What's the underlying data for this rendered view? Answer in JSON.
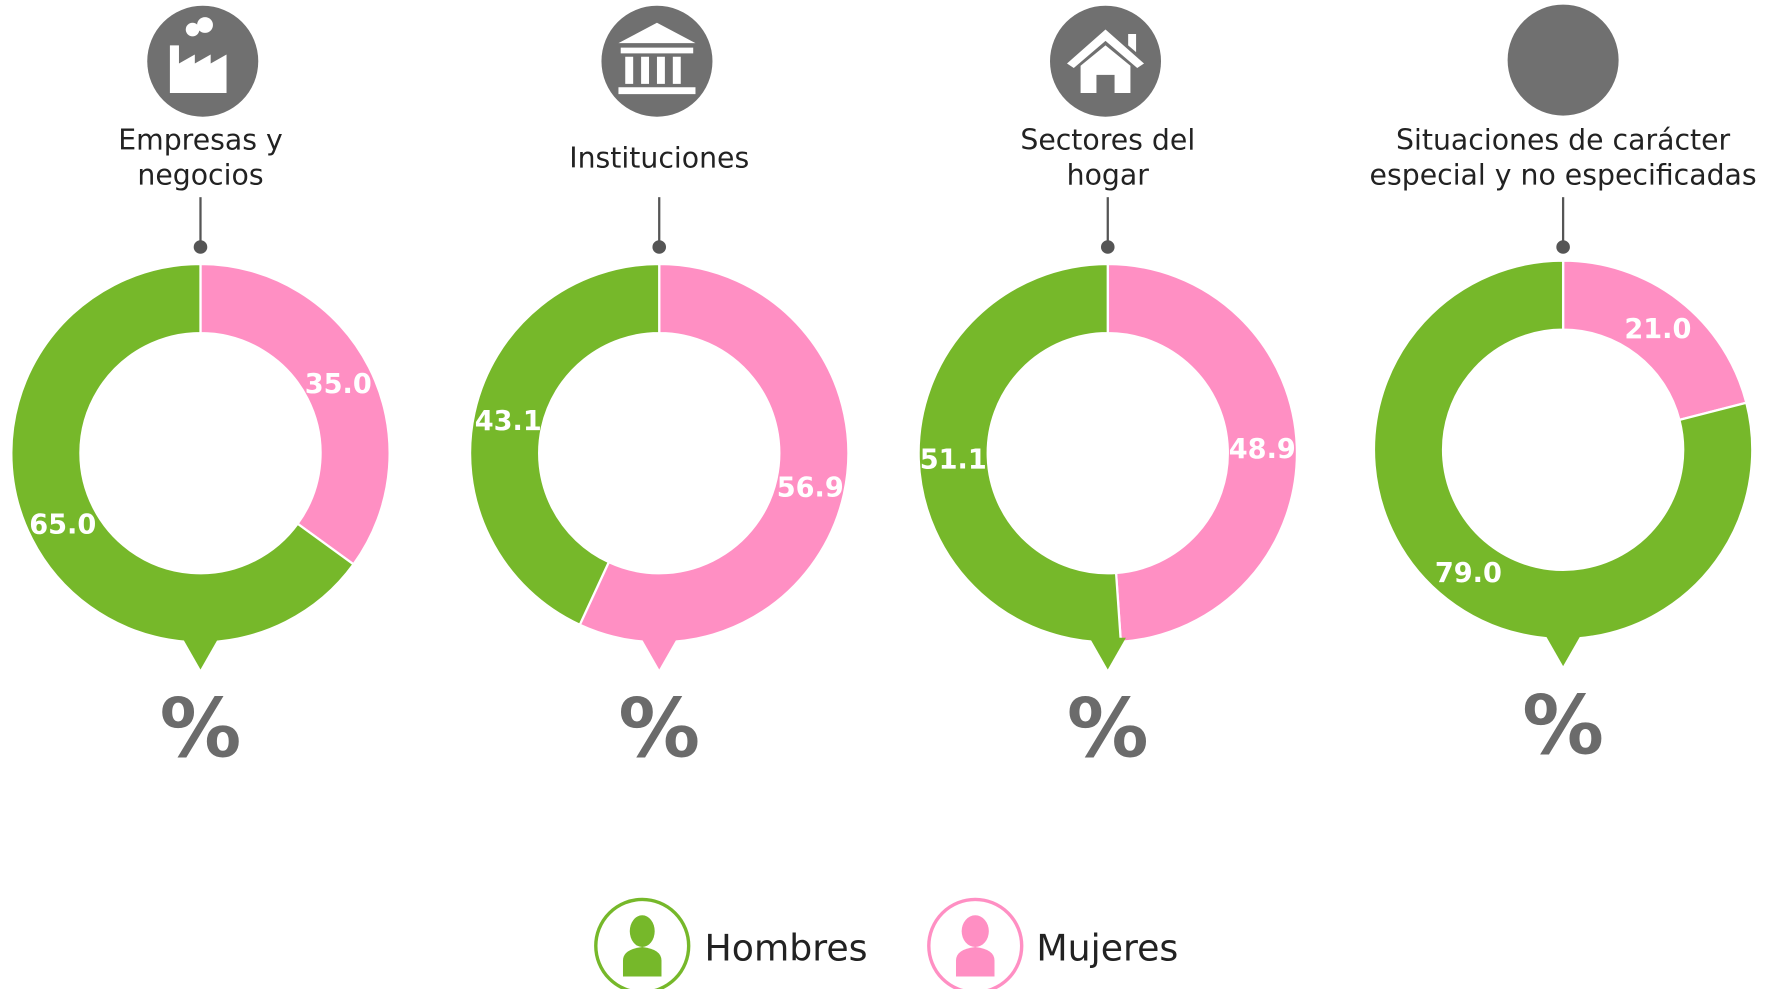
{
  "chart_data": [
    {
      "type": "donut",
      "title": "Empresas y negocios",
      "categories": [
        "Hombres",
        "Mujeres"
      ],
      "values": [
        65.0,
        35.0
      ],
      "value_labels": [
        "65.0",
        "35.0"
      ],
      "colors": [
        "#76b82a",
        "#ff8fc3"
      ],
      "unit": "%"
    },
    {
      "type": "donut",
      "title": "Instituciones",
      "categories": [
        "Hombres",
        "Mujeres"
      ],
      "values": [
        43.1,
        56.9
      ],
      "value_labels": [
        "43.1",
        "56.9"
      ],
      "colors": [
        "#76b82a",
        "#ff8fc3"
      ],
      "unit": "%"
    },
    {
      "type": "donut",
      "title": "Sectores del hogar",
      "categories": [
        "Hombres",
        "Mujeres"
      ],
      "values": [
        51.1,
        48.9
      ],
      "value_labels": [
        "51.1",
        "48.9"
      ],
      "colors": [
        "#76b82a",
        "#ff8fc3"
      ],
      "unit": "%"
    },
    {
      "type": "donut",
      "title": "Situaciones de carácter especial y no especificadas",
      "categories": [
        "Hombres",
        "Mujeres"
      ],
      "values": [
        79.0,
        21.0
      ],
      "value_labels": [
        "79.0",
        "21.0"
      ],
      "colors": [
        "#76b82a",
        "#ff8fc3"
      ],
      "unit": "%"
    }
  ]
}
